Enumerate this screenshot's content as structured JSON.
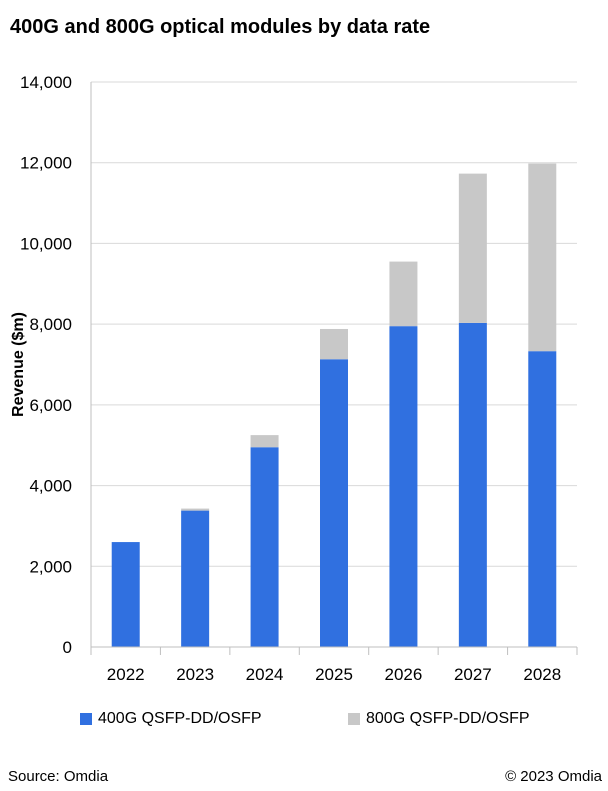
{
  "title": "400G and 800G optical modules by data rate",
  "source": "Source: Omdia",
  "copyright": "© 2023 Omdia",
  "chart_data": {
    "type": "bar",
    "stacked": true,
    "title": "400G and 800G optical modules by data rate",
    "xlabel": "",
    "ylabel": "Revenue ($m)",
    "ylim": [
      0,
      14000
    ],
    "yticks": [
      0,
      2000,
      4000,
      6000,
      8000,
      10000,
      12000,
      14000
    ],
    "ytick_labels": [
      "0",
      "2,000",
      "4,000",
      "6,000",
      "8,000",
      "10,000",
      "12,000",
      "14,000"
    ],
    "categories": [
      "2022",
      "2023",
      "2024",
      "2025",
      "2026",
      "2027",
      "2028"
    ],
    "grid": true,
    "legend_position": "bottom",
    "series": [
      {
        "name": "400G QSFP-DD/OSFP",
        "color": "#3070E0",
        "values": [
          2600,
          3380,
          4950,
          7130,
          7950,
          8030,
          7330
        ]
      },
      {
        "name": "800G QSFP-DD/OSFP",
        "color": "#C8C8C8",
        "values": [
          0,
          50,
          300,
          750,
          1600,
          3700,
          4650
        ]
      }
    ]
  }
}
